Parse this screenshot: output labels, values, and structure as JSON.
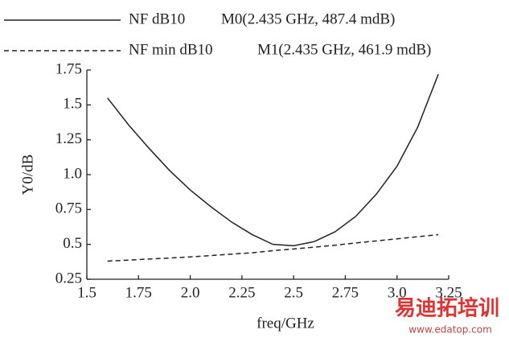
{
  "chart_data": {
    "type": "line",
    "x_label": "freq/GHz",
    "y_label": "Y0/dB",
    "x": [
      1.6,
      1.7,
      1.8,
      1.9,
      2.0,
      2.1,
      2.2,
      2.3,
      2.4,
      2.5,
      2.6,
      2.7,
      2.8,
      2.9,
      3.0,
      3.1,
      3.2
    ],
    "series": [
      {
        "name": "NF dB10",
        "color": "#222222",
        "dash": "solid",
        "values": [
          1.55,
          1.36,
          1.19,
          1.03,
          0.89,
          0.77,
          0.66,
          0.57,
          0.5,
          0.49,
          0.52,
          0.59,
          0.7,
          0.86,
          1.06,
          1.34,
          1.72
        ]
      },
      {
        "name": "NF min dB10",
        "color": "#222222",
        "dash": "dashed",
        "values": [
          0.38,
          0.387,
          0.395,
          0.402,
          0.41,
          0.42,
          0.43,
          0.44,
          0.455,
          0.467,
          0.48,
          0.494,
          0.51,
          0.525,
          0.54,
          0.555,
          0.57
        ]
      }
    ],
    "annotations": [
      "M0(2.435 GHz, 487.4 mdB)",
      "M1(2.435 GHz, 461.9 mdB)"
    ],
    "xlim": [
      1.5,
      3.25
    ],
    "xticks": [
      1.5,
      1.75,
      {
        "value": 2.0,
        "label": "2.0"
      },
      2.25,
      2.5,
      2.75,
      {
        "value": 3.0,
        "label": "3.0"
      },
      3.25
    ],
    "ylim": [
      0.25,
      1.75
    ],
    "yticks": [
      0.25,
      0.5,
      0.75,
      {
        "value": 1.0,
        "label": "1.0"
      },
      1.25,
      1.5,
      1.75
    ],
    "grid": false
  },
  "watermark": {
    "title": "易迪拓培训",
    "url": "www.edatop.com"
  }
}
